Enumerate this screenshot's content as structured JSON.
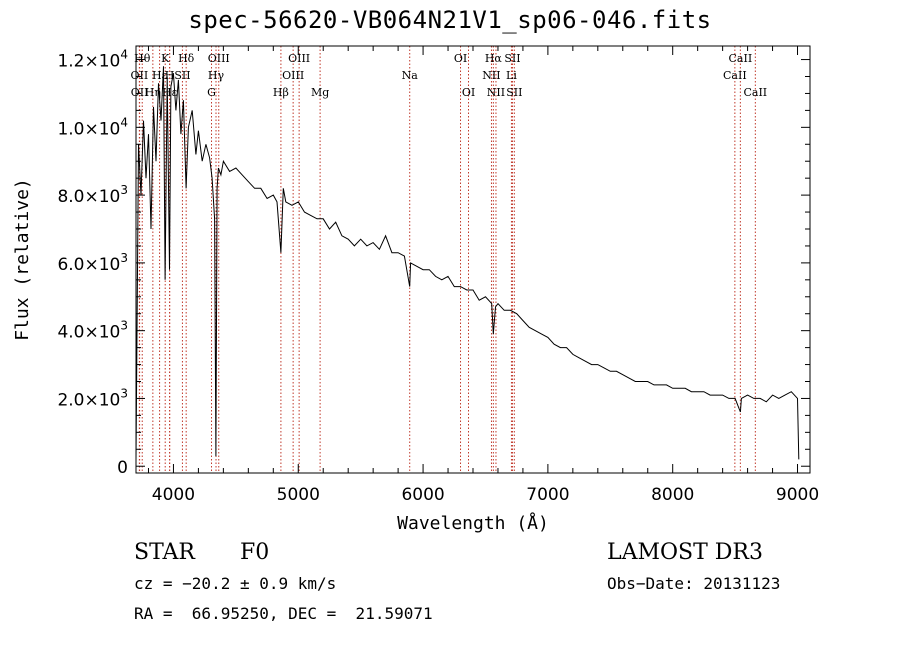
{
  "chart_data": {
    "type": "line",
    "title": "spec-56620-VB064N21V1_sp06-046.fits",
    "xlabel": "Wavelength (Å)",
    "ylabel": "Flux (relative)",
    "xlim": [
      3700,
      9100
    ],
    "ylim": [
      -200,
      12400
    ],
    "xticks": [
      4000,
      5000,
      6000,
      7000,
      8000,
      9000
    ],
    "xtick_labels": [
      "4000",
      "5000",
      "6000",
      "7000",
      "8000",
      "9000"
    ],
    "yticks": [
      0,
      2000,
      4000,
      6000,
      8000,
      10000,
      12000
    ],
    "ytick_labels": [
      {
        "mant": "0",
        "exp": ""
      },
      {
        "mant": "2.0×10",
        "exp": "3"
      },
      {
        "mant": "4.0×10",
        "exp": "3"
      },
      {
        "mant": "6.0×10",
        "exp": "3"
      },
      {
        "mant": "8.0×10",
        "exp": "3"
      },
      {
        "mant": "1.0×10",
        "exp": "4"
      },
      {
        "mant": "1.2×10",
        "exp": "4"
      }
    ],
    "series": [
      {
        "name": "flux",
        "x": [
          3700,
          3720,
          3740,
          3760,
          3780,
          3800,
          3820,
          3840,
          3860,
          3880,
          3900,
          3920,
          3933,
          3950,
          3968,
          3980,
          4000,
          4020,
          4040,
          4060,
          4080,
          4101,
          4120,
          4150,
          4180,
          4200,
          4230,
          4260,
          4290,
          4310,
          4330,
          4340,
          4350,
          4360,
          4380,
          4400,
          4450,
          4500,
          4550,
          4600,
          4650,
          4700,
          4750,
          4800,
          4830,
          4861,
          4880,
          4900,
          4950,
          5000,
          5050,
          5100,
          5150,
          5200,
          5250,
          5300,
          5350,
          5400,
          5450,
          5500,
          5550,
          5600,
          5650,
          5700,
          5750,
          5800,
          5850,
          5893,
          5900,
          5950,
          6000,
          6050,
          6100,
          6150,
          6200,
          6250,
          6300,
          6350,
          6400,
          6450,
          6500,
          6550,
          6563,
          6580,
          6600,
          6650,
          6700,
          6750,
          6800,
          6850,
          6900,
          6950,
          7000,
          7050,
          7100,
          7150,
          7200,
          7250,
          7300,
          7350,
          7400,
          7450,
          7500,
          7550,
          7600,
          7650,
          7700,
          7750,
          7800,
          7850,
          7900,
          7950,
          8000,
          8050,
          8100,
          8150,
          8200,
          8250,
          8300,
          8350,
          8400,
          8450,
          8500,
          8542,
          8550,
          8600,
          8650,
          8700,
          8750,
          8800,
          8850,
          8900,
          8950,
          9000,
          9010
        ],
        "y": [
          200,
          9500,
          8000,
          10200,
          8500,
          9800,
          7000,
          10600,
          9000,
          11300,
          10200,
          11800,
          5500,
          11500,
          5800,
          11200,
          11600,
          10500,
          11400,
          9800,
          10800,
          8200,
          10000,
          10500,
          9200,
          9900,
          9000,
          9500,
          9100,
          8500,
          7300,
          300,
          8200,
          8800,
          8600,
          9000,
          8700,
          8800,
          8600,
          8400,
          8200,
          8200,
          7900,
          8000,
          7800,
          6300,
          8200,
          7800,
          7700,
          7800,
          7500,
          7400,
          7300,
          7300,
          7000,
          7200,
          6800,
          6700,
          6500,
          6700,
          6500,
          6600,
          6400,
          6800,
          6300,
          6300,
          6200,
          5300,
          6000,
          5900,
          5800,
          5800,
          5600,
          5500,
          5600,
          5300,
          5300,
          5200,
          5200,
          4900,
          5000,
          4800,
          3900,
          4700,
          4800,
          4600,
          4600,
          4500,
          4300,
          4100,
          4000,
          3900,
          3800,
          3600,
          3500,
          3500,
          3300,
          3200,
          3100,
          3000,
          3000,
          2900,
          2800,
          2800,
          2700,
          2600,
          2500,
          2500,
          2500,
          2400,
          2400,
          2400,
          2300,
          2300,
          2300,
          2200,
          2200,
          2200,
          2100,
          2100,
          2100,
          2000,
          2000,
          1600,
          2000,
          2100,
          2000,
          2000,
          1900,
          2100,
          2000,
          2100,
          2200,
          2000,
          200
        ]
      }
    ],
    "lines": [
      {
        "label": "OII",
        "x": 3727,
        "row": 2
      },
      {
        "label": "OII",
        "x": 3729,
        "row": 3
      },
      {
        "label": "Hθ",
        "x": 3750,
        "row": 1
      },
      {
        "label": "Hη",
        "x": 3835,
        "row": 3
      },
      {
        "label": "Hε",
        "x": 3889,
        "row": 2
      },
      {
        "label": "K",
        "x": 3934,
        "row": 1
      },
      {
        "label": "H",
        "x": 3969,
        "row": 2
      },
      {
        "label": "Hε",
        "x": 3970,
        "row": 3
      },
      {
        "label": "Hδ",
        "x": 4102,
        "row": 1
      },
      {
        "label": "SII",
        "x": 4072,
        "row": 2
      },
      {
        "label": "OIII",
        "x": 4363,
        "row": 1
      },
      {
        "label": "Hγ",
        "x": 4341,
        "row": 2
      },
      {
        "label": "G",
        "x": 4305,
        "row": 3
      },
      {
        "label": "Hβ",
        "x": 4861,
        "row": 3
      },
      {
        "label": "OIII",
        "x": 5007,
        "row": 1
      },
      {
        "label": "OIII",
        "x": 4959,
        "row": 2
      },
      {
        "label": "Mg",
        "x": 5175,
        "row": 3
      },
      {
        "label": "Na",
        "x": 5893,
        "row": 2
      },
      {
        "label": "OI",
        "x": 6300,
        "row": 1
      },
      {
        "label": "OI",
        "x": 6364,
        "row": 3
      },
      {
        "label": "Hα",
        "x": 6563,
        "row": 1
      },
      {
        "label": "NII",
        "x": 6548,
        "row": 2
      },
      {
        "label": "NII",
        "x": 6584,
        "row": 3
      },
      {
        "label": "SII",
        "x": 6716,
        "row": 1
      },
      {
        "label": "Li",
        "x": 6708,
        "row": 2
      },
      {
        "label": "SII",
        "x": 6731,
        "row": 3
      },
      {
        "label": "CaII",
        "x": 8542,
        "row": 1
      },
      {
        "label": "CaII",
        "x": 8498,
        "row": 2
      },
      {
        "label": "CaII",
        "x": 8662,
        "row": 3
      }
    ]
  },
  "info": {
    "class_label": "STAR",
    "subclass": "F0",
    "survey": "LAMOST DR3",
    "cz": "cz = −20.2 ± 0.9 km/s",
    "obs_date": "Obs−Date: 20131123",
    "coords": "RA =  66.95250, DEC =  21.59071"
  }
}
